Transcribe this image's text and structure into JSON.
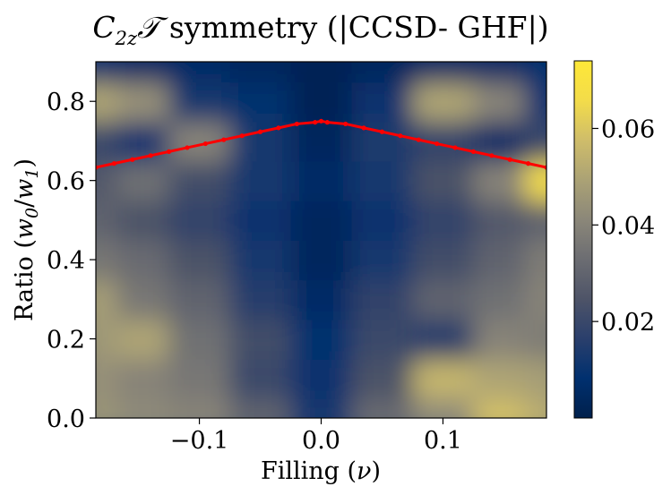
{
  "chart_data": {
    "type": "heatmap",
    "title_math": "C",
    "title_sub": "2z",
    "title_script": "𝒯",
    "title_rest": " symmetry (|CCSD- GHF|)",
    "xlabel_text": "Filling (",
    "xlabel_var": "ν",
    "xlabel_close": ")",
    "ylabel_text": "Ratio (",
    "ylabel_w0": "w",
    "ylabel_w0_sub": "0",
    "ylabel_slash": "/",
    "ylabel_w1": "w",
    "ylabel_w1_sub": "1",
    "ylabel_close": ")",
    "xlim": [
      -0.185,
      0.185
    ],
    "ylim": [
      0.0,
      0.9
    ],
    "xticks": [
      {
        "value": -0.1,
        "label": "−0.1"
      },
      {
        "value": 0.0,
        "label": "0.0"
      },
      {
        "value": 0.1,
        "label": "0.1"
      }
    ],
    "yticks": [
      {
        "value": 0.0,
        "label": "0.0"
      },
      {
        "value": 0.2,
        "label": "0.2"
      },
      {
        "value": 0.4,
        "label": "0.4"
      },
      {
        "value": 0.6,
        "label": "0.6"
      },
      {
        "value": 0.8,
        "label": "0.8"
      }
    ],
    "colorbar": {
      "range": [
        0.0,
        0.074
      ],
      "ticks": [
        {
          "value": 0.02,
          "label": "0.02"
        },
        {
          "value": 0.04,
          "label": "0.04"
        },
        {
          "value": 0.06,
          "label": "0.06"
        }
      ],
      "colormap": "cividis",
      "stops": [
        "#00204c",
        "#00306f",
        "#2a3f6c",
        "#4e5468",
        "#6c6d72",
        "#8b8779",
        "#aba275",
        "#cfbd6a",
        "#f3dc4a",
        "#fee838"
      ]
    },
    "heatmap": {
      "x": [
        -0.185,
        -0.15,
        -0.1,
        -0.05,
        0.0,
        0.05,
        0.1,
        0.15,
        0.185
      ],
      "y": [
        0.0,
        0.1,
        0.2,
        0.3,
        0.4,
        0.5,
        0.6,
        0.7,
        0.8,
        0.9
      ],
      "z": [
        [
          0.045,
          0.042,
          0.04,
          0.03,
          0.012,
          0.032,
          0.042,
          0.058,
          0.052
        ],
        [
          0.044,
          0.04,
          0.036,
          0.02,
          0.01,
          0.024,
          0.055,
          0.05,
          0.048
        ],
        [
          0.046,
          0.05,
          0.034,
          0.022,
          0.008,
          0.02,
          0.016,
          0.04,
          0.038
        ],
        [
          0.048,
          0.036,
          0.03,
          0.016,
          0.006,
          0.018,
          0.03,
          0.034,
          0.04
        ],
        [
          0.036,
          0.032,
          0.024,
          0.012,
          0.004,
          0.012,
          0.022,
          0.03,
          0.038
        ],
        [
          0.03,
          0.024,
          0.018,
          0.01,
          0.004,
          0.01,
          0.018,
          0.026,
          0.03
        ],
        [
          0.026,
          0.034,
          0.022,
          0.012,
          0.006,
          0.012,
          0.024,
          0.04,
          0.066
        ],
        [
          0.02,
          0.01,
          0.04,
          0.012,
          0.004,
          0.014,
          0.018,
          0.006,
          0.02
        ],
        [
          0.05,
          0.044,
          0.012,
          0.008,
          0.002,
          0.01,
          0.05,
          0.04,
          0.01
        ],
        [
          0.008,
          0.006,
          0.006,
          0.004,
          0.002,
          0.004,
          0.006,
          0.006,
          0.008
        ]
      ]
    },
    "series": [
      {
        "name": "boundary",
        "color": "#ff0000",
        "type": "line-markers",
        "x": [
          -0.185,
          -0.17,
          -0.155,
          -0.14,
          -0.125,
          -0.11,
          -0.095,
          -0.08,
          -0.065,
          -0.05,
          -0.035,
          -0.02,
          -0.005,
          0.0,
          0.005,
          0.02,
          0.035,
          0.05,
          0.065,
          0.08,
          0.095,
          0.11,
          0.125,
          0.14,
          0.155,
          0.17,
          0.185
        ],
        "y": [
          0.633,
          0.643,
          0.653,
          0.663,
          0.673,
          0.683,
          0.693,
          0.703,
          0.713,
          0.723,
          0.733,
          0.743,
          0.747,
          0.75,
          0.747,
          0.743,
          0.733,
          0.723,
          0.713,
          0.703,
          0.693,
          0.683,
          0.673,
          0.663,
          0.653,
          0.643,
          0.633
        ]
      }
    ]
  }
}
